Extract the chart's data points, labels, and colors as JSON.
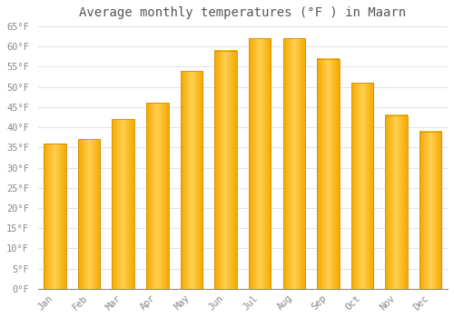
{
  "title": "Average monthly temperatures (°F ) in Maarn",
  "months": [
    "Jan",
    "Feb",
    "Mar",
    "Apr",
    "May",
    "Jun",
    "Jul",
    "Aug",
    "Sep",
    "Oct",
    "Nov",
    "Dec"
  ],
  "values": [
    36,
    37,
    42,
    46,
    54,
    59,
    62,
    62,
    57,
    51,
    43,
    39
  ],
  "bar_color_center": "#FFD050",
  "bar_color_edge": "#F5A800",
  "ylim": [
    0,
    65
  ],
  "yticks": [
    0,
    5,
    10,
    15,
    20,
    25,
    30,
    35,
    40,
    45,
    50,
    55,
    60,
    65
  ],
  "ytick_labels": [
    "0°F",
    "5°F",
    "10°F",
    "15°F",
    "20°F",
    "25°F",
    "30°F",
    "35°F",
    "40°F",
    "45°F",
    "50°F",
    "55°F",
    "60°F",
    "65°F"
  ],
  "bg_color": "#FFFFFF",
  "grid_color": "#DDDDDD",
  "title_fontsize": 10,
  "tick_fontsize": 7.5,
  "bar_width": 0.65
}
